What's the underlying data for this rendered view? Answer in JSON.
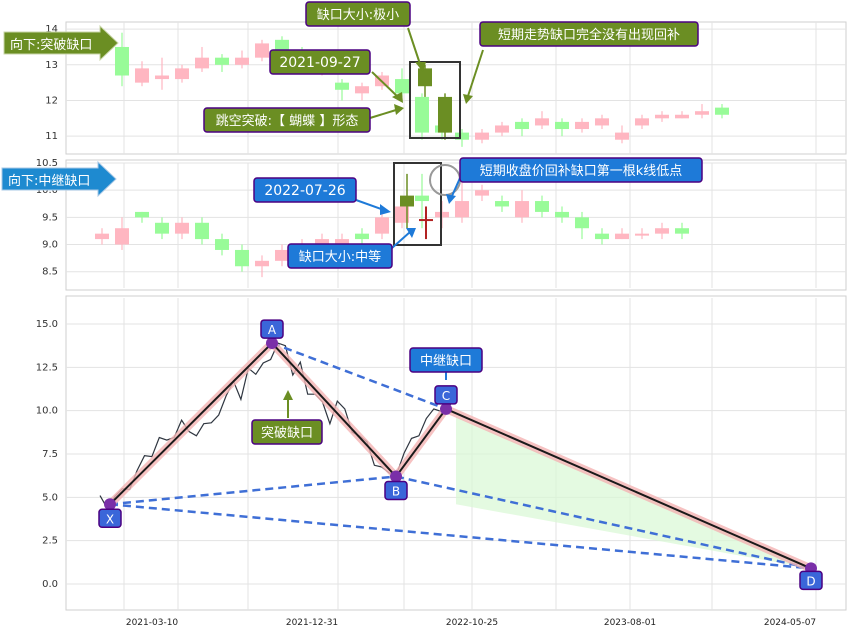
{
  "colors": {
    "up": "#ffb6c1",
    "down": "#98fb98",
    "gap_up": "#ff9aa9",
    "gap_candle": "#6b8e23",
    "red_cross": "#b22222",
    "olive_label": "#6b8e23",
    "blue_label": "#1e7ad8",
    "pattern_point": "#3a66d9",
    "price_line": "#2f3640"
  },
  "panel1": {
    "tag": "向下:突破缺口",
    "annotations": {
      "gap_size": "缺口大小:极小",
      "date": "2021-09-27",
      "pattern": "跳空突破:【 蝴蝶 】形态",
      "no_fill": "短期走势缺口完全没有出现回补"
    },
    "yticks": [
      "14",
      "13",
      "12",
      "11"
    ]
  },
  "panel2": {
    "tag": "向下:中继缺口",
    "annotations": {
      "date": "2022-07-26",
      "gap_size": "缺口大小:中等",
      "fill": "短期收盘价回补缺口第一根k线低点"
    },
    "yticks": [
      "10.5",
      "10.0",
      "9.5",
      "9.0",
      "8.5"
    ]
  },
  "panel3": {
    "yticks": [
      "15.0",
      "12.5",
      "10.0",
      "7.5",
      "5.0",
      "2.5",
      "0.0"
    ],
    "xticks": [
      "2021-03-10",
      "2021-12-31",
      "2022-10-25",
      "2023-08-01",
      "2024-05-07"
    ],
    "points": [
      {
        "label": "X",
        "value": 4.6
      },
      {
        "label": "A",
        "value": 13.9
      },
      {
        "label": "B",
        "value": 6.2
      },
      {
        "label": "C",
        "value": 10.1
      },
      {
        "label": "D",
        "value": 0.9
      }
    ],
    "gap_labels": {
      "breakaway": "突破缺口",
      "continuation": "中继缺口"
    }
  },
  "chart_data": [
    {
      "type": "candlestick",
      "title": "",
      "ylim": [
        10.5,
        14.2
      ],
      "candles": [
        {
          "o": 13.5,
          "c": 12.7,
          "h": 13.9,
          "l": 12.4
        },
        {
          "o": 12.5,
          "c": 12.9,
          "h": 13.1,
          "l": 12.4
        },
        {
          "o": 12.6,
          "c": 12.7,
          "h": 13.2,
          "l": 12.3
        },
        {
          "o": 12.6,
          "c": 12.9,
          "h": 13.0,
          "l": 12.5
        },
        {
          "o": 12.9,
          "c": 13.2,
          "h": 13.5,
          "l": 12.8
        },
        {
          "o": 13.2,
          "c": 13.0,
          "h": 13.3,
          "l": 12.8
        },
        {
          "o": 13.0,
          "c": 13.2,
          "h": 13.4,
          "l": 12.9
        },
        {
          "o": 13.2,
          "c": 13.6,
          "h": 13.7,
          "l": 13.1
        },
        {
          "o": 13.7,
          "c": 13.4,
          "h": 13.8,
          "l": 13.2
        },
        {
          "o": 13.4,
          "c": 13.0,
          "h": 13.5,
          "l": 12.9
        },
        {
          "o": 12.9,
          "c": 13.1,
          "h": 13.2,
          "l": 12.7
        },
        {
          "o": 12.5,
          "c": 12.3,
          "h": 12.6,
          "l": 12.0
        },
        {
          "o": 12.2,
          "c": 12.4,
          "h": 12.5,
          "l": 12.0
        },
        {
          "o": 12.4,
          "c": 12.7,
          "h": 12.8,
          "l": 12.3
        },
        {
          "o": 12.6,
          "c": 12.2,
          "h": 12.9,
          "l": 12.1
        },
        {
          "o": 12.1,
          "c": 11.1,
          "h": 12.2,
          "l": 10.9
        },
        {
          "o": 11.3,
          "c": 11.1,
          "h": 11.4,
          "l": 10.9
        },
        {
          "o": 11.1,
          "c": 10.9,
          "h": 11.2,
          "l": 10.7
        },
        {
          "o": 10.9,
          "c": 11.1,
          "h": 11.2,
          "l": 10.8
        },
        {
          "o": 11.1,
          "c": 11.3,
          "h": 11.4,
          "l": 11.0
        },
        {
          "o": 11.4,
          "c": 11.2,
          "h": 11.5,
          "l": 11.0
        },
        {
          "o": 11.3,
          "c": 11.5,
          "h": 11.7,
          "l": 11.2
        },
        {
          "o": 11.4,
          "c": 11.2,
          "h": 11.5,
          "l": 11.0
        },
        {
          "o": 11.2,
          "c": 11.4,
          "h": 11.5,
          "l": 11.1
        },
        {
          "o": 11.3,
          "c": 11.5,
          "h": 11.6,
          "l": 11.2
        },
        {
          "o": 10.9,
          "c": 11.1,
          "h": 11.3,
          "l": 10.8
        },
        {
          "o": 11.3,
          "c": 11.5,
          "h": 11.6,
          "l": 11.2
        },
        {
          "o": 11.5,
          "c": 11.6,
          "h": 11.7,
          "l": 11.4
        },
        {
          "o": 11.5,
          "c": 11.6,
          "h": 11.7,
          "l": 11.5
        },
        {
          "o": 11.6,
          "c": 11.7,
          "h": 11.9,
          "l": 11.5
        },
        {
          "o": 11.8,
          "c": 11.6,
          "h": 11.9,
          "l": 11.5
        }
      ]
    },
    {
      "type": "candlestick",
      "title": "",
      "ylim": [
        8.2,
        10.5
      ],
      "candles": [
        {
          "o": 9.1,
          "c": 9.2,
          "h": 9.3,
          "l": 9.0
        },
        {
          "o": 9.0,
          "c": 9.3,
          "h": 9.5,
          "l": 8.9
        },
        {
          "o": 9.6,
          "c": 9.5,
          "h": 9.6,
          "l": 9.4
        },
        {
          "o": 9.4,
          "c": 9.2,
          "h": 9.5,
          "l": 9.1
        },
        {
          "o": 9.2,
          "c": 9.4,
          "h": 9.5,
          "l": 9.1
        },
        {
          "o": 9.4,
          "c": 9.1,
          "h": 9.5,
          "l": 9.0
        },
        {
          "o": 9.1,
          "c": 8.9,
          "h": 9.2,
          "l": 8.8
        },
        {
          "o": 8.9,
          "c": 8.6,
          "h": 9.0,
          "l": 8.5
        },
        {
          "o": 8.6,
          "c": 8.7,
          "h": 8.8,
          "l": 8.4
        },
        {
          "o": 8.7,
          "c": 8.9,
          "h": 9.0,
          "l": 8.6
        },
        {
          "o": 8.9,
          "c": 9.0,
          "h": 9.1,
          "l": 8.8
        },
        {
          "o": 9.0,
          "c": 9.1,
          "h": 9.2,
          "l": 8.9
        },
        {
          "o": 9.0,
          "c": 9.1,
          "h": 9.2,
          "l": 8.9
        },
        {
          "o": 9.2,
          "c": 9.1,
          "h": 9.3,
          "l": 9.0
        },
        {
          "o": 9.2,
          "c": 9.5,
          "h": 9.6,
          "l": 9.1
        },
        {
          "o": 9.4,
          "c": 9.7,
          "h": 9.9,
          "l": 9.3
        },
        {
          "o": 9.9,
          "c": 9.8,
          "h": 10.3,
          "l": 9.3
        },
        {
          "o": 9.5,
          "c": 9.6,
          "h": 9.8,
          "l": 9.3
        },
        {
          "o": 9.5,
          "c": 9.8,
          "h": 10.2,
          "l": 9.4
        },
        {
          "o": 9.9,
          "c": 10.0,
          "h": 10.1,
          "l": 9.8
        },
        {
          "o": 9.8,
          "c": 9.7,
          "h": 9.9,
          "l": 9.6
        },
        {
          "o": 9.5,
          "c": 9.8,
          "h": 10.0,
          "l": 9.4
        },
        {
          "o": 9.8,
          "c": 9.6,
          "h": 9.9,
          "l": 9.5
        },
        {
          "o": 9.6,
          "c": 9.5,
          "h": 9.7,
          "l": 9.4
        },
        {
          "o": 9.5,
          "c": 9.3,
          "h": 9.6,
          "l": 9.1
        },
        {
          "o": 9.2,
          "c": 9.1,
          "h": 9.3,
          "l": 9.0
        },
        {
          "o": 9.1,
          "c": 9.2,
          "h": 9.3,
          "l": 9.1
        },
        {
          "o": 9.2,
          "c": 9.2,
          "h": 9.3,
          "l": 9.1
        },
        {
          "o": 9.2,
          "c": 9.3,
          "h": 9.4,
          "l": 9.1
        },
        {
          "o": 9.3,
          "c": 9.2,
          "h": 9.4,
          "l": 9.1
        }
      ]
    },
    {
      "type": "line",
      "title": "",
      "ylim": [
        -1.5,
        16.5
      ],
      "xlabel": "",
      "ylabel": "",
      "series": [
        {
          "values": [
            4.8,
            4.7,
            4.9,
            5.2,
            5.8,
            6.4,
            7.1,
            7.7,
            8.3,
            8.0,
            8.8,
            9.3,
            8.5,
            8.9,
            9.1,
            9.0,
            10.1,
            10.7,
            11.4,
            11.0,
            12.3,
            11.8,
            13.1,
            12.8,
            13.6,
            14.1,
            11.9,
            12.5,
            11.3,
            10.8,
            10.2,
            9.6,
            10.4,
            9.8,
            9.1,
            8.4,
            7.9,
            7.2,
            6.6,
            6.1,
            6.7,
            7.4,
            8.1,
            8.9,
            9.4,
            9.8,
            10.3,
            10.1,
            10.4
          ]
        }
      ]
    }
  ]
}
